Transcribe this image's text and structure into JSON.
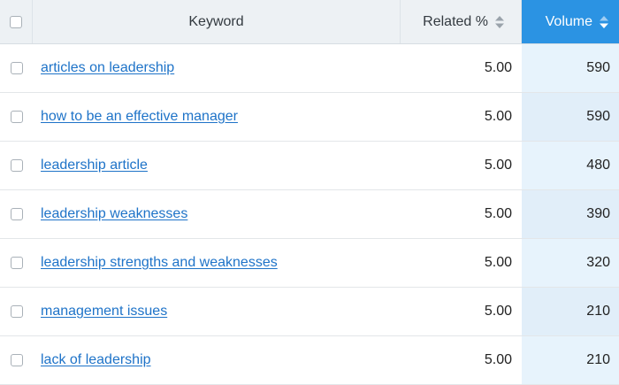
{
  "header": {
    "keyword_label": "Keyword",
    "related_label": "Related %",
    "volume_label": "Volume"
  },
  "colors": {
    "active_sort_header": "#2b93e3",
    "active_column_cell": "#e7f3fc",
    "link": "#1e73c8",
    "header_bg": "#edf1f4"
  },
  "rows": [
    {
      "keyword": "articles on leadership",
      "related": "5.00",
      "volume": "590"
    },
    {
      "keyword": "how to be an effective manager",
      "related": "5.00",
      "volume": "590"
    },
    {
      "keyword": "leadership article",
      "related": "5.00",
      "volume": "480"
    },
    {
      "keyword": "leadership weaknesses",
      "related": "5.00",
      "volume": "390"
    },
    {
      "keyword": "leadership strengths and weaknesses",
      "related": "5.00",
      "volume": "320"
    },
    {
      "keyword": "management issues",
      "related": "5.00",
      "volume": "210"
    },
    {
      "keyword": "lack of leadership",
      "related": "5.00",
      "volume": "210"
    }
  ]
}
